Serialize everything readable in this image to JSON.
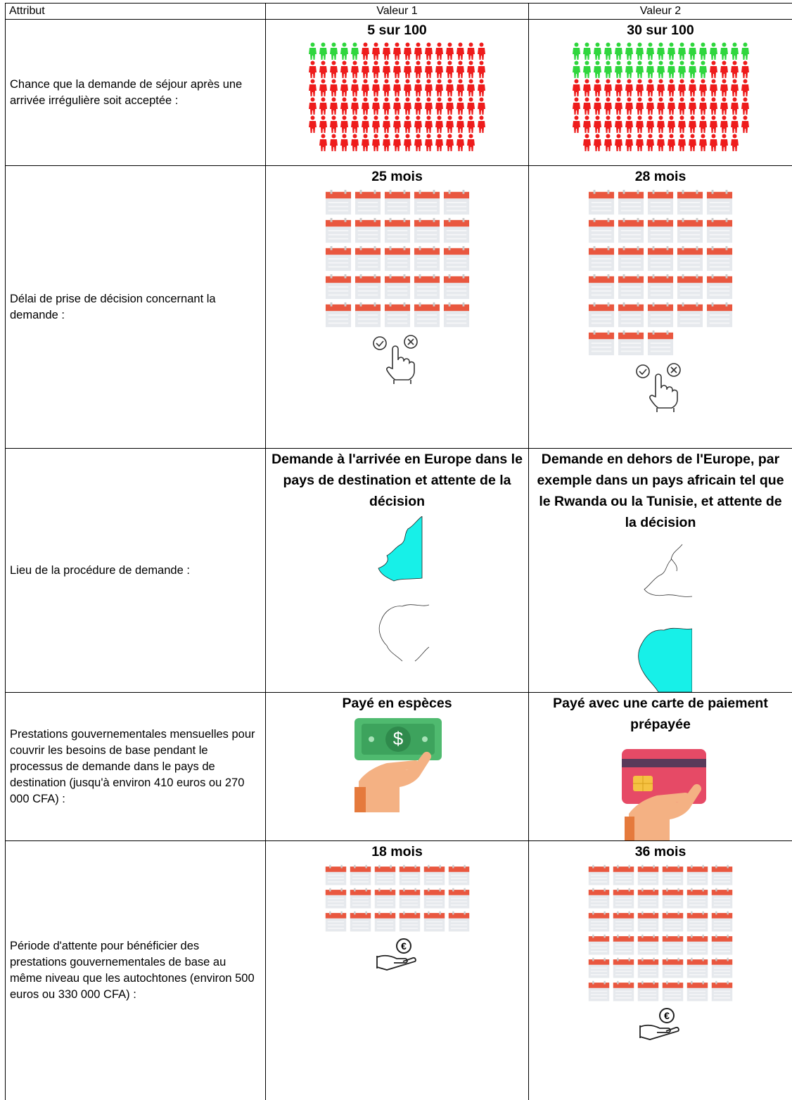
{
  "table": {
    "header": [
      "Attribut",
      "Valeur 1",
      "Valeur 2"
    ],
    "rows": [
      [
        "Chance que la demande de séjour après une arrivée irrégulière soit acceptée :",
        "5 sur 100",
        "30 sur 100"
      ],
      [
        "Délai de prise de décision concernant la demande :",
        "25 mois",
        "28 mois"
      ],
      [
        "Lieu de la procédure de demande :",
        "Demande à l'arrivée en Europe dans le pays de destination et attente de la décision",
        "Demande en dehors de l'Europe, par exemple dans un pays africain tel que le Rwanda ou la Tunisie, et attente de la décision"
      ],
      [
        "Prestations gouvernementales mensuelles pour couvrir les besoins de base pendant le processus de demande dans le pays de destination (jusqu'à environ 410 euros ou 270 000 CFA) :",
        "Payé en espèces",
        "Payé avec une carte de paiement prépayée"
      ],
      [
        "Période d'attente pour bénéficier des prestations gouvernementales de base au même niveau que les autochtones (environ 500 euros ou 330 000 CFA) :",
        "18 mois",
        "36 mois"
      ]
    ]
  }
}
